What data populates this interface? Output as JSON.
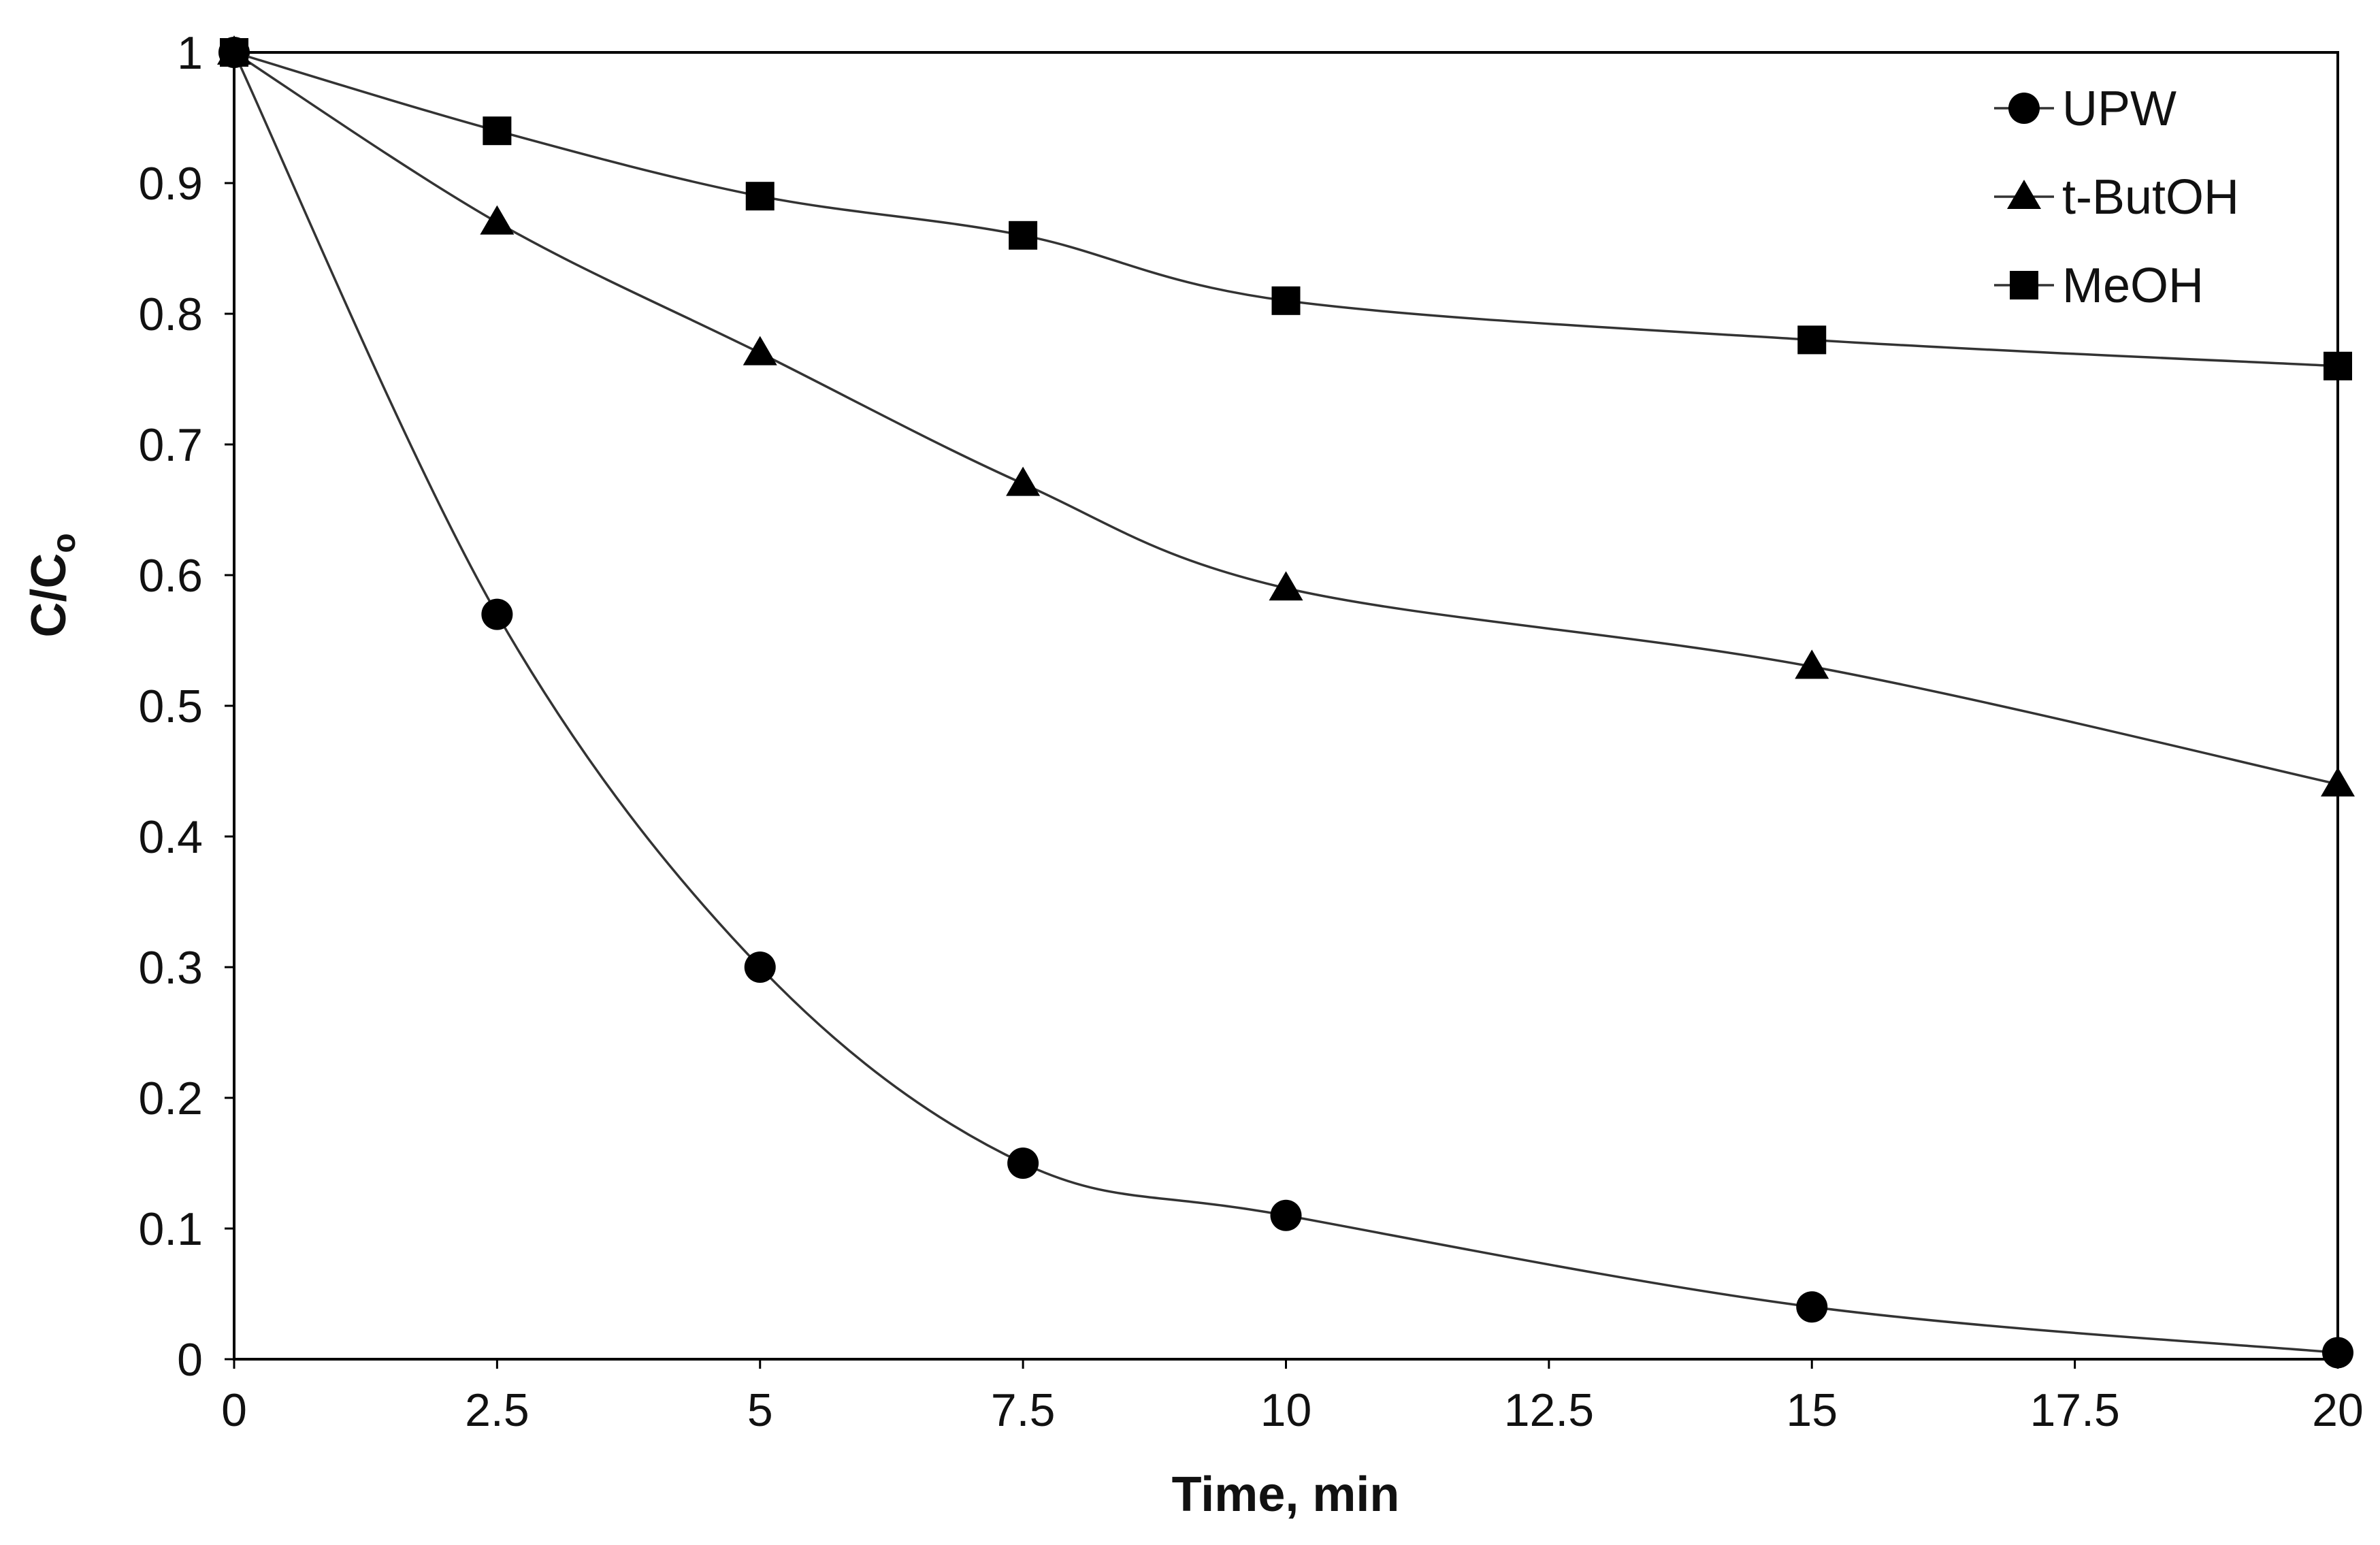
{
  "chart_data": {
    "type": "line",
    "title": "",
    "xlabel": "Time, min",
    "ylabel": {
      "main": "C/C",
      "subscript": "o"
    },
    "xlim": [
      0,
      20
    ],
    "ylim": [
      0,
      1
    ],
    "x_ticks": [
      "0",
      "2.5",
      "5",
      "7.5",
      "10",
      "12.5",
      "15",
      "17.5",
      "20"
    ],
    "x_tick_values": [
      0,
      2.5,
      5,
      7.5,
      10,
      12.5,
      15,
      17.5,
      20
    ],
    "y_ticks": [
      "0",
      "0.1",
      "0.2",
      "0.3",
      "0.4",
      "0.5",
      "0.6",
      "0.7",
      "0.8",
      "0.9",
      "1"
    ],
    "y_tick_values": [
      0,
      0.1,
      0.2,
      0.3,
      0.4,
      0.5,
      0.6,
      0.7,
      0.8,
      0.9,
      1
    ],
    "grid": false,
    "legend_position": "top-right",
    "series": [
      {
        "name": "UPW",
        "marker": "circle",
        "x": [
          0,
          2.5,
          5,
          7.5,
          10,
          15,
          20
        ],
        "y": [
          1,
          0.57,
          0.3,
          0.15,
          0.11,
          0.04,
          0.005
        ]
      },
      {
        "name": "t-ButOH",
        "marker": "triangle",
        "x": [
          0,
          2.5,
          5,
          7.5,
          10,
          15,
          20
        ],
        "y": [
          1,
          0.87,
          0.77,
          0.67,
          0.59,
          0.53,
          0.44
        ]
      },
      {
        "name": "MeOH",
        "marker": "square",
        "x": [
          0,
          2.5,
          5,
          7.5,
          10,
          15,
          20
        ],
        "y": [
          1,
          0.94,
          0.89,
          0.86,
          0.81,
          0.78,
          0.76
        ]
      }
    ],
    "colors": {
      "line": "#333333",
      "marker": "#000000",
      "frame": "#000000",
      "background": "#ffffff"
    }
  }
}
